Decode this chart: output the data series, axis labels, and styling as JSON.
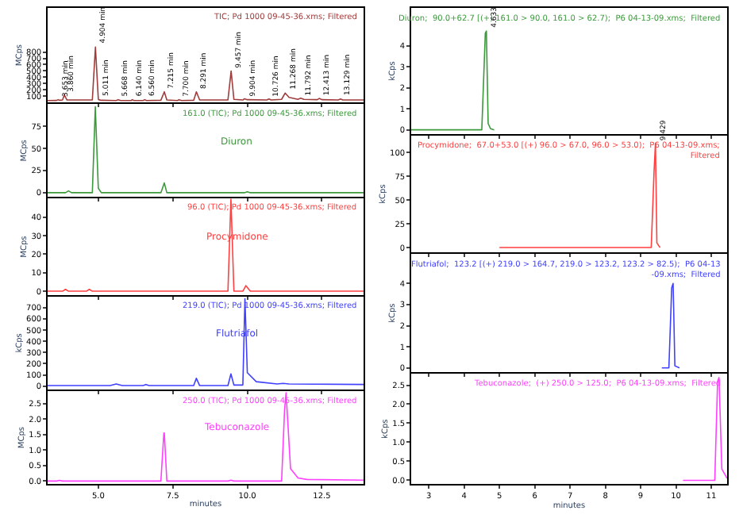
{
  "chart_data": [
    {
      "type": "line",
      "title": "TIC; Pd 1000 09-45-36.xms; Filtered",
      "ylabel": "MCps",
      "tick_labels": "y",
      "xlim": [
        3.3,
        13.9
      ],
      "xticks": [
        5,
        7.5,
        10,
        12.5
      ],
      "ylim": [
        0,
        1500
      ],
      "yticks": [
        100,
        200,
        300,
        400,
        500,
        600,
        700,
        800
      ],
      "grid": false,
      "legend": false,
      "series": [
        {
          "color": "#a03c3c",
          "x": [
            3.3,
            3.6,
            3.653,
            3.7,
            3.8,
            3.86,
            3.95,
            4.8,
            4.904,
            5.0,
            5.011,
            5.1,
            5.6,
            5.668,
            5.75,
            6.1,
            6.14,
            6.2,
            6.5,
            6.56,
            6.62,
            7.1,
            7.215,
            7.3,
            7.65,
            7.7,
            7.8,
            8.2,
            8.291,
            8.4,
            9.35,
            9.457,
            9.55,
            9.85,
            9.904,
            10.0,
            10.65,
            10.726,
            10.8,
            11.15,
            11.268,
            11.4,
            11.7,
            11.792,
            11.9,
            12.35,
            12.413,
            12.5,
            13.05,
            13.129,
            13.2,
            13.9
          ],
          "values": [
            30,
            32,
            45,
            35,
            40,
            120,
            40,
            40,
            880,
            60,
            45,
            35,
            30,
            45,
            30,
            30,
            45,
            30,
            30,
            45,
            30,
            35,
            170,
            40,
            30,
            45,
            30,
            35,
            170,
            40,
            40,
            500,
            50,
            40,
            60,
            45,
            40,
            55,
            40,
            50,
            150,
            80,
            50,
            70,
            50,
            45,
            65,
            45,
            40,
            55,
            40,
            40
          ]
        }
      ],
      "annotations": [
        {
          "text": "3.653 min",
          "x": 3.653,
          "y": 45
        },
        {
          "text": "3.860 min",
          "x": 3.86,
          "y": 120
        },
        {
          "text": "4.904 min",
          "x": 4.904,
          "y": 880
        },
        {
          "text": "5.011 min",
          "x": 5.011,
          "y": 45
        },
        {
          "text": "5.668 min",
          "x": 5.668,
          "y": 45
        },
        {
          "text": "6.140 min",
          "x": 6.14,
          "y": 45
        },
        {
          "text": "6.560 min",
          "x": 6.56,
          "y": 45
        },
        {
          "text": "7.215 min",
          "x": 7.215,
          "y": 170
        },
        {
          "text": "7.700 min",
          "x": 7.7,
          "y": 45
        },
        {
          "text": "8.291 min",
          "x": 8.291,
          "y": 170
        },
        {
          "text": "9.457 min",
          "x": 9.457,
          "y": 500
        },
        {
          "text": "9.904 min",
          "x": 9.904,
          "y": 60
        },
        {
          "text": "10.726 min",
          "x": 10.726,
          "y": 55
        },
        {
          "text": "11.268 min",
          "x": 11.268,
          "y": 150
        },
        {
          "text": "11.792 min",
          "x": 11.792,
          "y": 70
        },
        {
          "text": "12.413 min",
          "x": 12.413,
          "y": 65
        },
        {
          "text": "13.129 min",
          "x": 13.129,
          "y": 55
        }
      ]
    },
    {
      "type": "line",
      "title": "161.0 (TIC); Pd 1000 09-45-36.xms; Filtered",
      "ylabel": "MCps",
      "tick_labels": "y",
      "xlim": [
        3.3,
        13.9
      ],
      "xticks": [
        5,
        7.5,
        10,
        12.5
      ],
      "ylim": [
        -5,
        100
      ],
      "yticks": [
        0,
        25,
        50,
        75
      ],
      "grid": false,
      "legend": false,
      "series": [
        {
          "name": "Diuron",
          "color": "#3c9a3c",
          "x": [
            3.3,
            3.9,
            4.0,
            4.1,
            4.8,
            4.9,
            5.0,
            5.1,
            7.1,
            7.215,
            7.3,
            9.9,
            10.0,
            10.1,
            13.9
          ],
          "values": [
            0,
            0,
            2,
            0,
            0,
            97,
            5,
            0,
            0,
            11,
            0,
            0,
            1,
            0,
            0
          ]
        }
      ]
    },
    {
      "type": "line",
      "title": "96.0 (TIC); Pd 1000 09-45-36.xms; Filtered",
      "ylabel": "MCps",
      "tick_labels": "y",
      "xlim": [
        3.3,
        13.9
      ],
      "xticks": [
        5,
        7.5,
        10,
        12.5
      ],
      "ylim": [
        -2,
        50
      ],
      "yticks": [
        0,
        10,
        20,
        30,
        40
      ],
      "grid": false,
      "legend": false,
      "series": [
        {
          "name": "Procymidone",
          "color": "#ff4040",
          "x": [
            3.3,
            3.8,
            3.9,
            4.0,
            4.6,
            4.7,
            4.8,
            9.35,
            9.45,
            9.55,
            9.85,
            9.95,
            10.1,
            13.9
          ],
          "values": [
            0,
            0,
            1,
            0,
            0,
            1,
            0,
            0,
            50,
            0,
            0,
            3,
            0,
            0
          ]
        }
      ]
    },
    {
      "type": "line",
      "title": "219.0 (TIC); Pd 1000 09-45-36.xms; Filtered",
      "ylabel": "kCps",
      "tick_labels": "y",
      "xlim": [
        3.3,
        13.9
      ],
      "xticks": [
        5,
        7.5,
        10,
        12.5
      ],
      "ylim": [
        -30,
        800
      ],
      "yticks": [
        0,
        100,
        200,
        300,
        400,
        500,
        600,
        700
      ],
      "grid": false,
      "legend": false,
      "series": [
        {
          "name": "Flutriafol",
          "color": "#4040ff",
          "x": [
            3.3,
            5.4,
            5.6,
            5.8,
            6.5,
            6.6,
            6.7,
            8.2,
            8.29,
            8.4,
            9.35,
            9.45,
            9.55,
            9.85,
            9.92,
            10.0,
            10.3,
            11.0,
            11.2,
            11.4,
            13.9
          ],
          "values": [
            5,
            5,
            20,
            5,
            5,
            15,
            5,
            5,
            70,
            5,
            5,
            110,
            10,
            10,
            780,
            120,
            40,
            20,
            25,
            20,
            15
          ]
        }
      ]
    },
    {
      "type": "line",
      "title": "250.0 (TIC); Pd 1000 09-45-36.xms; Filtered",
      "ylabel": "MCps",
      "xlabel": "minutes",
      "xlim": [
        3.3,
        13.9
      ],
      "xticks": [
        {
          "value": 5,
          "label": "5.0"
        },
        7.5,
        {
          "value": 10,
          "label": "10.0"
        },
        12.5
      ],
      "ylim": [
        -0.1,
        2.9
      ],
      "yticks": [
        {
          "value": 0,
          "label": "0.0"
        },
        0.5,
        {
          "value": 1,
          "label": "1.0"
        },
        1.5,
        {
          "value": 2,
          "label": "2.0"
        },
        2.5
      ],
      "grid": false,
      "legend": false,
      "series": [
        {
          "name": "Tebuconazole",
          "color": "#ff40ff",
          "x": [
            3.3,
            3.6,
            3.7,
            3.8,
            7.1,
            7.2,
            7.215,
            7.3,
            9.35,
            9.45,
            9.55,
            11.15,
            11.25,
            11.3,
            11.45,
            11.7,
            12.0,
            13.9
          ],
          "values": [
            0,
            0,
            0.02,
            0,
            0,
            1.55,
            1.55,
            0,
            0,
            0.03,
            0,
            0,
            2.3,
            2.85,
            0.4,
            0.1,
            0.05,
            0.03
          ]
        }
      ]
    },
    {
      "type": "line",
      "title": "Diuron;  90.0+62.7 [(+) 161.0 > 90.0, 161.0 > 62.7);  P6 04-13-09.xms;  Filtered",
      "ylabel": "kCps",
      "tick_labels": "y",
      "xlim": [
        2.5,
        11.45
      ],
      "xticks": [
        3,
        4,
        5,
        6,
        7,
        8,
        9,
        10,
        11
      ],
      "ylim": [
        -0.2,
        5.8
      ],
      "yticks": [
        0,
        1,
        2,
        3,
        4
      ],
      "grid": false,
      "legend": false,
      "series": [
        {
          "color": "#3c9a3c",
          "x": [
            2.5,
            4.5,
            4.6,
            4.63,
            4.68,
            4.75,
            4.85
          ],
          "values": [
            0,
            0,
            4.6,
            4.7,
            0.3,
            0.05,
            0
          ]
        }
      ],
      "annotations": [
        {
          "text": "4.633",
          "x": 4.63,
          "y": 4.7
        }
      ]
    },
    {
      "type": "line",
      "title": "Procymidone;  67.0+53.0 [(+) 96.0 > 67.0, 96.0 > 53.0);  P6 04-13-09.xms;\nFiltered",
      "ylabel": "kCps",
      "tick_labels": "y",
      "xlim": [
        2.5,
        11.45
      ],
      "xticks": [
        3,
        4,
        5,
        6,
        7,
        8,
        9,
        10,
        11
      ],
      "ylim": [
        -5,
        118
      ],
      "yticks": [
        0,
        25,
        50,
        75,
        100
      ],
      "grid": false,
      "legend": false,
      "series": [
        {
          "color": "#ff4040",
          "x": [
            5.0,
            9.3,
            9.38,
            9.42,
            9.46,
            9.55
          ],
          "values": [
            0,
            0,
            80,
            110,
            5,
            0
          ]
        }
      ],
      "annotations": [
        {
          "text": "9.429",
          "x": 9.42,
          "y": 110
        }
      ]
    },
    {
      "type": "line",
      "title": "Flutriafol;  123.2 [(+) 219.0 > 164.7, 219.0 > 123.2, 123.2 > 82.5);  P6 04-13\n-09.xms;  Filtered",
      "ylabel": "kCps",
      "tick_labels": "y",
      "xlim": [
        2.5,
        11.45
      ],
      "xticks": [
        3,
        4,
        5,
        6,
        7,
        8,
        9,
        10,
        11
      ],
      "ylim": [
        -0.2,
        5.4
      ],
      "yticks": [
        0,
        1,
        2,
        3,
        4
      ],
      "grid": false,
      "legend": false,
      "series": [
        {
          "color": "#4040ff",
          "x": [
            9.6,
            9.8,
            9.88,
            9.92,
            9.97,
            10.1
          ],
          "values": [
            0,
            0,
            3.8,
            4.0,
            0.1,
            0
          ]
        }
      ]
    },
    {
      "type": "line",
      "title": "Tebuconazole;  (+) 250.0 > 125.0;  P6 04-13-09.xms;  Filtered",
      "ylabel": "kCps",
      "xlabel": "minutes",
      "xlim": [
        2.5,
        11.45
      ],
      "xticks": [
        3,
        4,
        5,
        6,
        7,
        8,
        9,
        10,
        11
      ],
      "ylim": [
        -0.1,
        2.8
      ],
      "yticks": [
        {
          "value": 0,
          "label": "0.0"
        },
        0.5,
        {
          "value": 1,
          "label": "1.0"
        },
        1.5,
        {
          "value": 2,
          "label": "2.0"
        },
        2.5
      ],
      "grid": false,
      "legend": false,
      "series": [
        {
          "color": "#ff40ff",
          "x": [
            10.2,
            11.1,
            11.18,
            11.22,
            11.3,
            11.45
          ],
          "values": [
            0,
            0,
            2.6,
            2.7,
            0.3,
            0.05
          ]
        }
      ]
    }
  ]
}
